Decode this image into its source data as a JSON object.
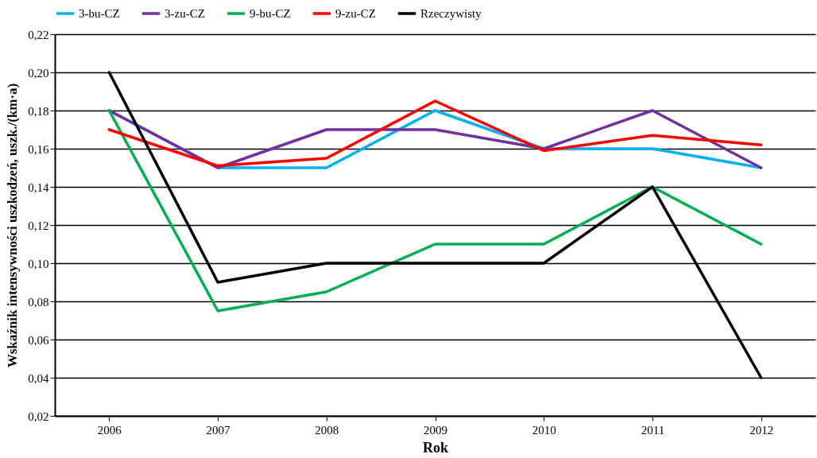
{
  "chart_data": {
    "type": "line",
    "xlabel": "Rok",
    "ylabel": "Wskaźnik intensywności uszkodzeń, uszk./(km·a)",
    "categories": [
      "2006",
      "2007",
      "2008",
      "2009",
      "2010",
      "2011",
      "2012"
    ],
    "series": [
      {
        "name": "3-bu-CZ",
        "color": "#00b0f0",
        "values": [
          0.18,
          0.15,
          0.15,
          0.18,
          0.16,
          0.16,
          0.15
        ]
      },
      {
        "name": "3-zu-CZ",
        "color": "#7030a0",
        "values": [
          0.18,
          0.15,
          0.17,
          0.17,
          0.16,
          0.18,
          0.15
        ]
      },
      {
        "name": "9-bu-CZ",
        "color": "#00b050",
        "values": [
          0.18,
          0.075,
          0.085,
          0.11,
          0.11,
          0.14,
          0.11
        ]
      },
      {
        "name": "9-zu-CZ",
        "color": "#ff0000",
        "values": [
          0.17,
          0.151,
          0.155,
          0.185,
          0.159,
          0.167,
          0.162
        ]
      },
      {
        "name": "Rzeczywisty",
        "color": "#000000",
        "values": [
          0.2,
          0.09,
          0.1,
          0.1,
          0.1,
          0.14,
          0.04
        ]
      }
    ],
    "ylim": [
      0.02,
      0.22
    ],
    "yticks": [
      {
        "value": 0.02,
        "label": "0,02"
      },
      {
        "value": 0.04,
        "label": "0,04"
      },
      {
        "value": 0.06,
        "label": "0,06"
      },
      {
        "value": 0.08,
        "label": "0,08"
      },
      {
        "value": 0.1,
        "label": "0,10"
      },
      {
        "value": 0.12,
        "label": "0,12"
      },
      {
        "value": 0.14,
        "label": "0,14"
      },
      {
        "value": 0.16,
        "label": "0,16"
      },
      {
        "value": 0.18,
        "label": "0,18"
      },
      {
        "value": 0.2,
        "label": "0,20"
      },
      {
        "value": 0.22,
        "label": "0,22"
      }
    ],
    "grid": "y",
    "legend": "top",
    "marker": "none",
    "line_style": "solid"
  }
}
